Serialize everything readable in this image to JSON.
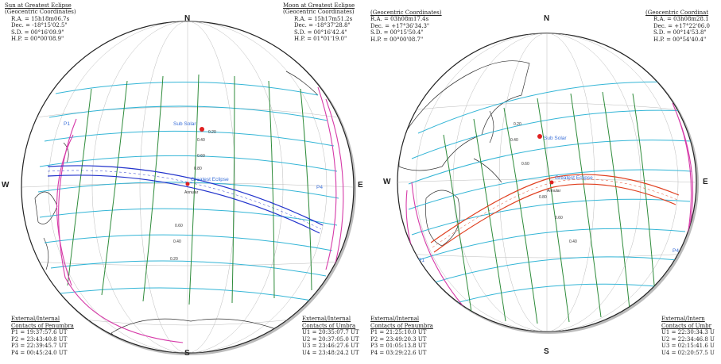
{
  "compass": {
    "north": "N",
    "south": "S",
    "west": "W",
    "east": "E"
  },
  "left": {
    "sun_block": {
      "title": "Sun at Greatest Eclipse",
      "subtitle": "(Geocentric Coordinates)",
      "lines": [
        "R.A. = 15h18m06.7s",
        "Dec. = -18°15'02.5\"",
        "S.D. = 00°16'09.9\"",
        "H.P. = 00°00'08.9\""
      ]
    },
    "moon_block": {
      "title": "Moon at Greatest Eclipse",
      "subtitle": "(Geocentric Coordinates)",
      "lines": [
        "R.A. = 15h17m51.2s",
        "Dec. = -18°37'28.8\"",
        "S.D. = 00°16'42.4\"",
        "H.P. = 01°01'19.0\""
      ]
    },
    "contacts_left": {
      "title1": "External/Internal",
      "title2": "Contacts of Penumbra",
      "lines": [
        "P1 = 19:37:57.6 UT",
        "P2 = 23:43:40.8 UT",
        "P3 = 22:39:45.7 UT",
        "P4 = 00:45:24.0 UT"
      ]
    },
    "contacts_right": {
      "title1": "External/Internal",
      "title2": "Contacts of Umbra",
      "lines": [
        "U1 = 20:35:07.7 UT",
        "U2 = 20:37:05.0 UT",
        "U3 = 23:46:27.6 UT",
        "U4 = 23:48:24.2 UT"
      ]
    },
    "map_labels": {
      "sub_solar": "Sub Solar",
      "greatest_eclipse": "Greatest Eclipse",
      "annular": "Annular",
      "p1": "P1",
      "p4": "P4",
      "magnitudes": [
        "0.20",
        "0.40",
        "0.60",
        "0.80",
        "0.60",
        "0.40",
        "0.20"
      ]
    }
  },
  "right": {
    "sun_block": {
      "title": "",
      "subtitle": "(Geocentric Coordinates)",
      "lines": [
        "R.A. = 03h08m17.4s",
        "Dec. = +17°36'34.3\"",
        "S.D. = 00°15'50.4\"",
        "H.P. = 00°00'08.7\""
      ]
    },
    "moon_block": {
      "title": "",
      "subtitle": "(Geocentric Coordinat",
      "lines": [
        "R.A. = 03h08m28.1",
        "Dec. = +17°22'06.0",
        "S.D. = 00°14'53.8\"",
        "H.P. = 00°54'40.4\""
      ]
    },
    "contacts_left": {
      "title1": "External/Internal",
      "title2": "Contacts of Penumbra",
      "lines": [
        "P1 = 21:25:10.0 UT",
        "P2 = 23:49:20.3 UT",
        "P3 = 01:05:13.8 UT",
        "P4 = 03:29:22.6 UT"
      ]
    },
    "contacts_right": {
      "title1": "External/Intern",
      "title2": "Contacts of Umbr",
      "lines": [
        "U1 = 22:30:34.3 U",
        "U2 = 22:34:46.8 U",
        "U3 = 02:15:41.6 U",
        "U4 = 02:20:57.5 U"
      ]
    },
    "map_labels": {
      "sub_solar": "Sub Solar",
      "greatest_eclipse": "Greatest Eclipse",
      "annular": "Annular",
      "p1": "P1",
      "p4": "P4",
      "magnitudes": [
        "0.20",
        "0.40",
        "0.60",
        "0.80",
        "0.60",
        "0.40"
      ]
    }
  },
  "colors": {
    "cyan": "#33b5d6",
    "green": "#2e8b3a",
    "magenta": "#d63aa8",
    "blue_path": "#2233cc",
    "red_path": "#e04020",
    "label_blue": "#3a6fd8",
    "point_red": "#e02020"
  }
}
